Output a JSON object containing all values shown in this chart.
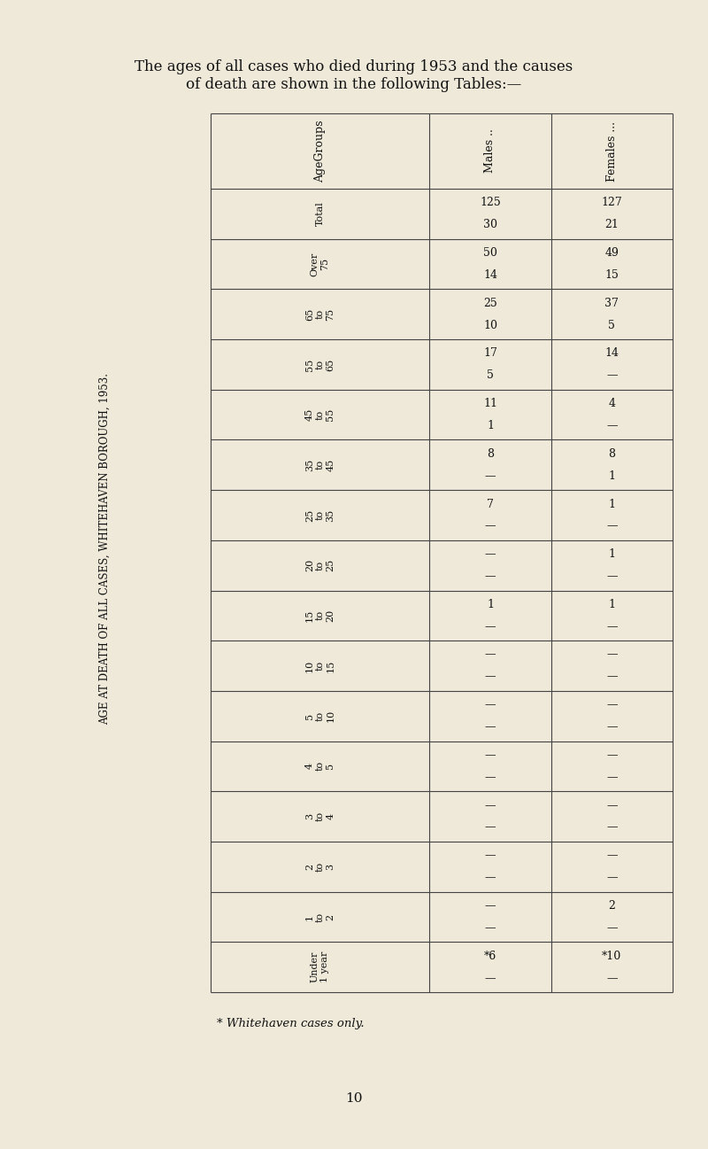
{
  "title_line1": "The ages of all cases who died during 1953 and the causes",
  "title_line2": "of death are shown in the following Tables:—",
  "vertical_label": "AGE AT DEATH OF ALL CASES, WHITEHAVEN BOROUGH, 1953.",
  "row_headers": [
    "Total",
    "Over\n75",
    "65\nto\n75",
    "55\nto\n65",
    "45\nto\n55",
    "35\nto\n45",
    "25\nto\n35",
    "20\nto\n25",
    "15\nto\n20",
    "10\nto\n15",
    "5\nto\n10",
    "4\nto\n5",
    "3\nto\n4",
    "2\nto\n3",
    "1\nto\n2",
    "Under\n1 year"
  ],
  "col_labels": [
    "AgeGroups",
    "Males ..",
    "Females ..."
  ],
  "males_top": [
    "125",
    "50",
    "25",
    "17",
    "11",
    "8",
    "7",
    "—",
    "1",
    "—",
    "—",
    "—",
    "—",
    "—",
    "—",
    "*6"
  ],
  "males_bot": [
    "30",
    "14",
    "10",
    "5",
    "1",
    "—",
    "—",
    "—",
    "—",
    "—",
    "—",
    "—",
    "—",
    "—",
    "—",
    "—"
  ],
  "females_top": [
    "127",
    "49",
    "37",
    "14",
    "4",
    "8",
    "1",
    "1",
    "1",
    "—",
    "—",
    "—",
    "—",
    "—",
    "2",
    "*10"
  ],
  "females_bot": [
    "21",
    "15",
    "5",
    "—",
    "—",
    "1",
    "—",
    "—",
    "—",
    "—",
    "—",
    "—",
    "—",
    "—",
    "—",
    "—"
  ],
  "footnote": "* Whitehaven cases only.",
  "page_number": "10",
  "bg_color": "#eee9d9",
  "text_color": "#111111",
  "line_color": "#444444"
}
